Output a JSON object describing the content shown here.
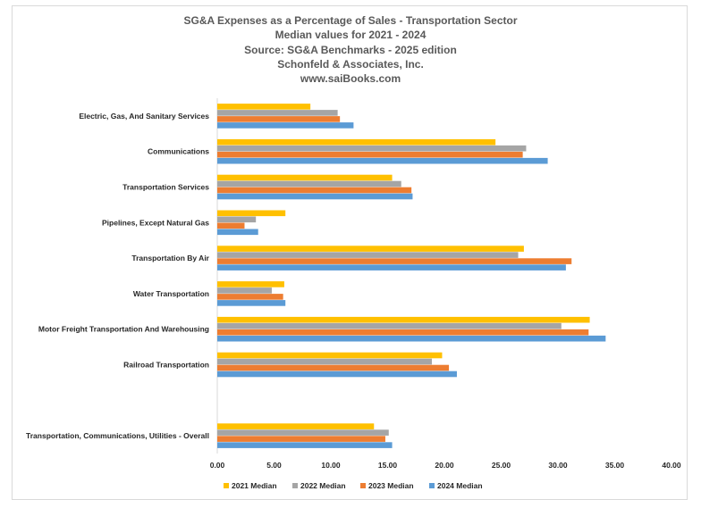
{
  "chart_data": {
    "type": "bar",
    "orientation": "horizontal",
    "title_lines": [
      "SG&A Expenses as a Percentage of Sales - Transportation Sector",
      "Median values for 2021 - 2024",
      "Source: SG&A Benchmarks - 2025 edition",
      "Schonfeld & Associates, Inc.",
      "www.saiBooks.com"
    ],
    "categories": [
      "Electric, Gas, And Sanitary Services",
      "Communications",
      "Transportation Services",
      "Pipelines, Except Natural Gas",
      "Transportation By Air",
      "Water Transportation",
      "Motor Freight Transportation And Warehousing",
      "Railroad Transportation",
      "",
      "Transportation, Communications, Utilities - Overall"
    ],
    "series": [
      {
        "name": "2021 Median",
        "color": "#FFC000",
        "values": [
          8.2,
          24.5,
          15.4,
          6.0,
          27.0,
          5.9,
          32.8,
          19.8,
          null,
          13.8
        ]
      },
      {
        "name": "2022 Median",
        "color": "#A5A5A5",
        "values": [
          10.6,
          27.2,
          16.2,
          3.4,
          26.5,
          4.8,
          30.3,
          18.9,
          null,
          15.1
        ]
      },
      {
        "name": "2023 Median",
        "color": "#ED7D31",
        "values": [
          10.8,
          26.9,
          17.1,
          2.4,
          31.2,
          5.8,
          32.7,
          20.4,
          null,
          14.8
        ]
      },
      {
        "name": "2024 Median",
        "color": "#5B9BD5",
        "values": [
          12.0,
          29.1,
          17.2,
          3.6,
          30.7,
          6.0,
          34.2,
          21.1,
          null,
          15.4
        ]
      }
    ],
    "xlim": [
      0,
      40
    ],
    "x_ticks": [
      "0.00",
      "5.00",
      "10.00",
      "15.00",
      "20.00",
      "25.00",
      "30.00",
      "35.00",
      "40.00"
    ],
    "grid": false,
    "legend_position": "bottom"
  }
}
